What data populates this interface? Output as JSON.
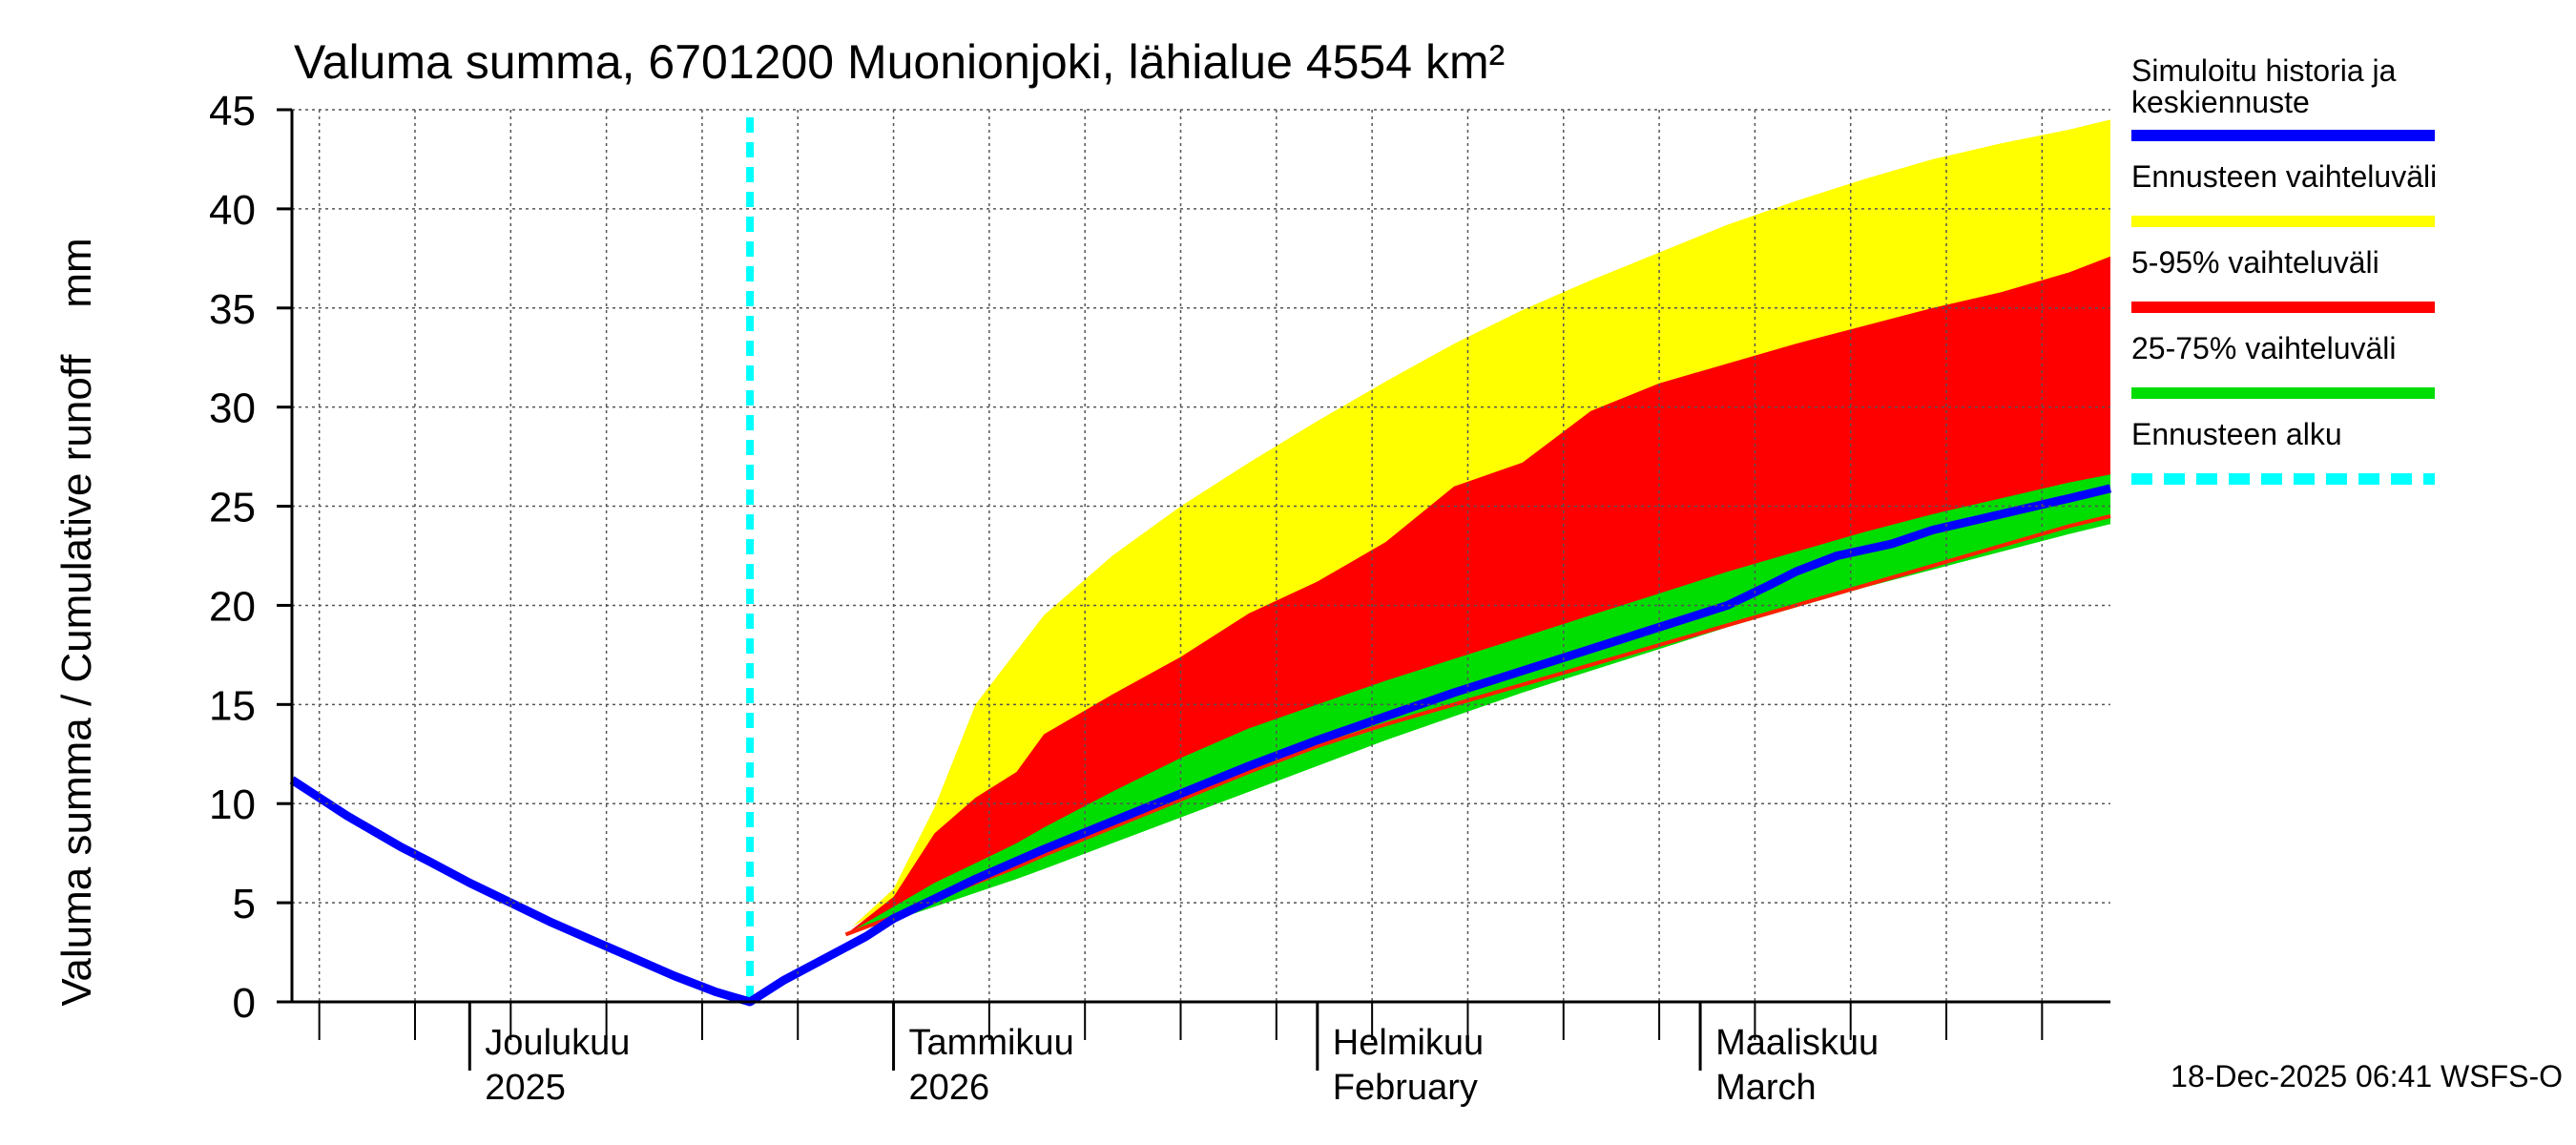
{
  "chart_data": {
    "type": "area",
    "title": "Valuma summa, 6701200 Muonionjoki, lähialue 4554 km²",
    "ylabel": "Valuma summa / Cumulative runoff    mm",
    "xlabel": "",
    "ylim": [
      0,
      45
    ],
    "yticks": [
      0,
      5,
      10,
      15,
      20,
      25,
      30,
      35,
      40,
      45
    ],
    "grid": true,
    "x_unit": "days since 2025-11-18",
    "xlim": [
      0,
      133
    ],
    "month_ticks": [
      {
        "day": 13,
        "line1": "Joulukuu",
        "line2": "2025"
      },
      {
        "day": 44,
        "line1": "Tammikuu",
        "line2": "2026"
      },
      {
        "day": 75,
        "line1": "Helmikuu",
        "line2": "February"
      },
      {
        "day": 103,
        "line1": "Maaliskuu",
        "line2": "March"
      }
    ],
    "forecast_start_day": 33.5,
    "series": [
      {
        "name": "Ennusteen vaihteluväli",
        "color": "#ffff00",
        "x": [
          33.5,
          36,
          41,
          44,
          47,
          50,
          55,
          60,
          65,
          70,
          75,
          80,
          85,
          90,
          95,
          100,
          105,
          110,
          115,
          120,
          125,
          130,
          133
        ],
        "upper": [
          0,
          1.7,
          3.8,
          5.7,
          9.8,
          15,
          19.5,
          22.5,
          25,
          27.2,
          29.3,
          31.3,
          33.2,
          34.9,
          36.4,
          37.8,
          39.2,
          40.4,
          41.5,
          42.5,
          43.3,
          44.0,
          44.5
        ],
        "lower": [
          0,
          1.7,
          3.8,
          5.0,
          6.5,
          7.8,
          10.0,
          12.0,
          13.8,
          15.5,
          17.0,
          18.5,
          20.0,
          21.4,
          22.8,
          24.1,
          25.3,
          26.5,
          27.7,
          28.8,
          29.8,
          30.8,
          31.3
        ]
      },
      {
        "name": "5-95% vaihteluväli",
        "color": "#ff0000",
        "x": [
          40.5,
          44,
          47,
          50,
          53,
          55,
          60,
          65,
          70,
          75,
          80,
          85,
          90,
          95,
          100,
          105,
          110,
          115,
          120,
          125,
          130,
          133
        ],
        "upper": [
          3.4,
          5.3,
          8.5,
          10.3,
          11.6,
          13.5,
          15.5,
          17.4,
          19.6,
          21.2,
          23.2,
          26.0,
          27.2,
          29.8,
          31.2,
          32.2,
          33.2,
          34.1,
          35.0,
          35.8,
          36.8,
          37.6
        ],
        "lower": [
          3.4,
          4.3,
          5.2,
          6.0,
          6.8,
          7.4,
          8.8,
          10.2,
          11.6,
          12.9,
          14.0,
          15.0,
          16.0,
          17.0,
          18.0,
          19.0,
          20.0,
          21.0,
          22.0,
          23.0,
          24.0,
          24.5
        ]
      },
      {
        "name": "25-75% vaihteluväli",
        "color": "#00dd00",
        "x": [
          40.5,
          44,
          47,
          50,
          53,
          55,
          60,
          65,
          70,
          75,
          80,
          85,
          90,
          95,
          100,
          105,
          110,
          115,
          120,
          125,
          130,
          133
        ],
        "upper": [
          3.4,
          4.8,
          6.0,
          7.0,
          8.0,
          8.8,
          10.6,
          12.3,
          13.8,
          15.0,
          16.2,
          17.3,
          18.4,
          19.5,
          20.6,
          21.7,
          22.7,
          23.7,
          24.6,
          25.4,
          26.2,
          26.6
        ],
        "lower": [
          3.4,
          4.1,
          4.8,
          5.5,
          6.2,
          6.7,
          8.0,
          9.3,
          10.6,
          11.9,
          13.2,
          14.4,
          15.6,
          16.7,
          17.8,
          18.9,
          19.9,
          20.9,
          21.8,
          22.7,
          23.6,
          24.1
        ]
      },
      {
        "name": "Simuloitu historia ja keskiennuste",
        "color": "#0000ff",
        "x": [
          0,
          2,
          4,
          6,
          8,
          10,
          13,
          16,
          19,
          22,
          25,
          28,
          31,
          33.5,
          36,
          39,
          42,
          44,
          47,
          50,
          55,
          60,
          65,
          70,
          75,
          80,
          85,
          90,
          95,
          100,
          105,
          108,
          110,
          113,
          117,
          120,
          125,
          130,
          133
        ],
        "values": [
          11.2,
          10.3,
          9.4,
          8.6,
          7.8,
          7.1,
          6.0,
          5.0,
          4.0,
          3.1,
          2.2,
          1.3,
          0.5,
          0,
          1.1,
          2.2,
          3.3,
          4.2,
          5.2,
          6.2,
          7.7,
          9.1,
          10.5,
          11.9,
          13.2,
          14.4,
          15.6,
          16.7,
          17.8,
          18.9,
          20.0,
          21.0,
          21.7,
          22.5,
          23.1,
          23.8,
          24.6,
          25.4,
          25.9
        ]
      }
    ],
    "legend": [
      {
        "label": "Simuloitu historia ja keskiennuste",
        "color": "#0000ff",
        "style": "solid"
      },
      {
        "label": "Ennusteen vaihteluväli",
        "color": "#ffff00",
        "style": "solid"
      },
      {
        "label": "5-95% vaihteluväli",
        "color": "#ff0000",
        "style": "solid"
      },
      {
        "label": "25-75% vaihteluväli",
        "color": "#00dd00",
        "style": "solid"
      },
      {
        "label": "Ennusteen alku",
        "color": "#00ffff",
        "style": "dashed"
      }
    ],
    "footer": "18-Dec-2025 06:41 WSFS-O"
  }
}
